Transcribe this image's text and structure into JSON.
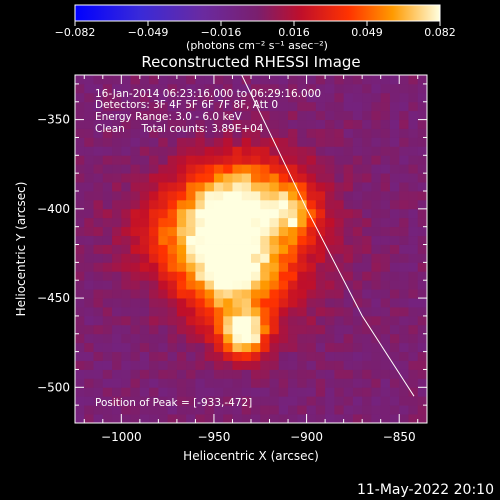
{
  "chart_data": {
    "type": "heatmap",
    "title": "Reconstructed RHESSI Image",
    "xlabel": "Heliocentric X (arcsec)",
    "ylabel": "Heliocentric Y (arcsec)",
    "xlim": [
      -1025,
      -835
    ],
    "ylim": [
      -520,
      -325
    ],
    "xticks": [
      -1000,
      -950,
      -900,
      -850
    ],
    "yticks": [
      -350,
      -400,
      -450,
      -500
    ],
    "colorbar": {
      "min": -0.082,
      "max": 0.082,
      "ticks": [
        "-0.082",
        "-0.049",
        "-0.016",
        "0.016",
        "0.049",
        "0.082"
      ],
      "units": "(photons cm⁻² s⁻¹ asec⁻²)"
    },
    "annotations": [
      "16-Jan-2014 06:23:16.000 to 06:29:16.000",
      "Detectors: 3F 4F 5F 6F 7F 8F, Att 0",
      "Energy Range: 3.0 - 6.0 keV",
      "Clean     Total counts: 3.89E+04"
    ],
    "peak_label": "Position of Peak = [-933,-472]",
    "peak": [
      -933,
      -472
    ],
    "limb": [
      [
        -935,
        -325
      ],
      [
        -900,
        -400
      ],
      [
        -870,
        -460
      ],
      [
        -842,
        -505
      ]
    ],
    "sources": [
      {
        "x": -934,
        "y": -470,
        "amp": 0.082,
        "sx": 9,
        "sy": 9
      },
      {
        "x": -940,
        "y": -440,
        "amp": 0.055,
        "sx": 20,
        "sy": 18
      },
      {
        "x": -955,
        "y": -412,
        "amp": 0.052,
        "sx": 26,
        "sy": 18
      },
      {
        "x": -935,
        "y": -388,
        "amp": 0.042,
        "sx": 20,
        "sy": 14
      },
      {
        "x": -908,
        "y": -402,
        "amp": 0.04,
        "sx": 10,
        "sy": 10
      },
      {
        "x": -930,
        "y": -415,
        "amp": 0.03,
        "sx": 30,
        "sy": 30
      }
    ]
  },
  "timestamp": "11-May-2022 20:10"
}
